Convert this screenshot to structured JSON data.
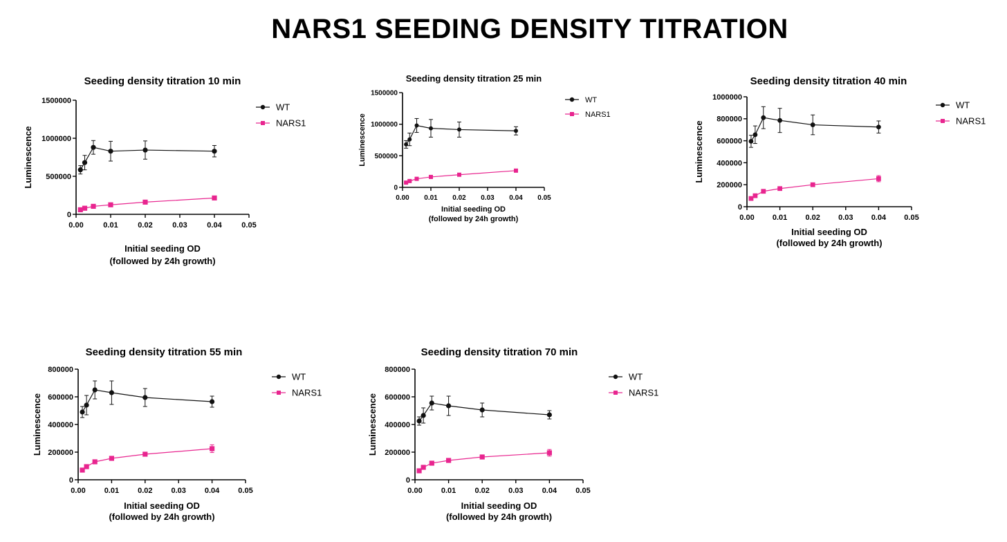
{
  "page_title": "NARS1 SEEDING DENSITY TITRATION",
  "colors": {
    "WT": "#111111",
    "NARS1": "#e8258f"
  },
  "chart_data": [
    {
      "type": "line",
      "title": "Seeding density titration 10 min",
      "xlabel": [
        "Initial seeding OD",
        "(followed by 24h growth)"
      ],
      "ylabel": "Luminescence",
      "xlim": [
        0,
        0.05
      ],
      "ylim": [
        0,
        1500000
      ],
      "xticks": [
        "0.00",
        "0.01",
        "0.02",
        "0.03",
        "0.04",
        "0.05"
      ],
      "yticks": [
        "0",
        "500000",
        "1000000",
        "1500000"
      ],
      "legend": [
        "WT",
        "NARS1"
      ],
      "series": [
        {
          "name": "WT",
          "x": [
            0.00125,
            0.0025,
            0.005,
            0.01,
            0.02,
            0.04
          ],
          "values": [
            585000,
            680000,
            880000,
            830000,
            845000,
            830000
          ],
          "errors": [
            55000,
            95000,
            90000,
            130000,
            120000,
            75000
          ]
        },
        {
          "name": "NARS1",
          "x": [
            0.00125,
            0.0025,
            0.005,
            0.01,
            0.02,
            0.04
          ],
          "values": [
            60000,
            80000,
            105000,
            125000,
            160000,
            215000
          ],
          "errors": [
            10000,
            10000,
            12000,
            12000,
            15000,
            22000
          ]
        }
      ]
    },
    {
      "type": "line",
      "title": "Seeding density titration 25 min",
      "xlabel": [
        "Initial seeding OD",
        "(followed by 24h growth)"
      ],
      "ylabel": "Luminescence",
      "xlim": [
        0,
        0.05
      ],
      "ylim": [
        0,
        1500000
      ],
      "xticks": [
        "0.00",
        "0.01",
        "0.02",
        "0.03",
        "0.04",
        "0.05"
      ],
      "yticks": [
        "0",
        "500000",
        "1000000",
        "1500000"
      ],
      "legend": [
        "WT",
        "NARS1"
      ],
      "series": [
        {
          "name": "WT",
          "x": [
            0.00125,
            0.0025,
            0.005,
            0.01,
            0.02,
            0.04
          ],
          "values": [
            680000,
            760000,
            980000,
            935000,
            915000,
            895000
          ],
          "errors": [
            60000,
            100000,
            110000,
            140000,
            120000,
            65000
          ]
        },
        {
          "name": "NARS1",
          "x": [
            0.00125,
            0.0025,
            0.005,
            0.01,
            0.02,
            0.04
          ],
          "values": [
            75000,
            100000,
            135000,
            165000,
            200000,
            265000
          ],
          "errors": [
            10000,
            12000,
            14000,
            15000,
            16000,
            25000
          ]
        }
      ]
    },
    {
      "type": "line",
      "title": "Seeding density titration 40 min",
      "xlabel": [
        "Initial seeding OD",
        "(followed by 24h growth)"
      ],
      "ylabel": "Luminescence",
      "xlim": [
        0,
        0.05
      ],
      "ylim": [
        0,
        1000000
      ],
      "xticks": [
        "0.00",
        "0.01",
        "0.02",
        "0.03",
        "0.04",
        "0.05"
      ],
      "yticks": [
        "0",
        "200000",
        "400000",
        "600000",
        "800000",
        "1000000"
      ],
      "legend": [
        "WT",
        "NARS1"
      ],
      "series": [
        {
          "name": "WT",
          "x": [
            0.00125,
            0.0025,
            0.005,
            0.01,
            0.02,
            0.04
          ],
          "values": [
            595000,
            655000,
            810000,
            785000,
            745000,
            725000
          ],
          "errors": [
            55000,
            80000,
            100000,
            110000,
            90000,
            55000
          ]
        },
        {
          "name": "NARS1",
          "x": [
            0.00125,
            0.0025,
            0.005,
            0.01,
            0.02,
            0.04
          ],
          "values": [
            75000,
            100000,
            140000,
            165000,
            200000,
            255000
          ],
          "errors": [
            10000,
            10000,
            12000,
            12000,
            14000,
            28000
          ]
        }
      ]
    },
    {
      "type": "line",
      "title": "Seeding density titration 55 min",
      "xlabel": [
        "Initial seeding OD",
        "(followed by 24h growth)"
      ],
      "ylabel": "Luminescence",
      "xlim": [
        0,
        0.05
      ],
      "ylim": [
        0,
        800000
      ],
      "xticks": [
        "0.00",
        "0.01",
        "0.02",
        "0.03",
        "0.04",
        "0.05"
      ],
      "yticks": [
        "0",
        "200000",
        "400000",
        "600000",
        "800000"
      ],
      "legend": [
        "WT",
        "NARS1"
      ],
      "series": [
        {
          "name": "WT",
          "x": [
            0.00125,
            0.0025,
            0.005,
            0.01,
            0.02,
            0.04
          ],
          "values": [
            490000,
            540000,
            650000,
            630000,
            595000,
            565000
          ],
          "errors": [
            40000,
            70000,
            65000,
            85000,
            65000,
            40000
          ]
        },
        {
          "name": "NARS1",
          "x": [
            0.00125,
            0.0025,
            0.005,
            0.01,
            0.02,
            0.04
          ],
          "values": [
            70000,
            95000,
            130000,
            155000,
            185000,
            225000
          ],
          "errors": [
            8000,
            9000,
            10000,
            11000,
            12000,
            28000
          ]
        }
      ]
    },
    {
      "type": "line",
      "title": "Seeding density titration 70 min",
      "xlabel": [
        "Initial seeding OD",
        "(followed by 24h growth)"
      ],
      "ylabel": "Luminescence",
      "xlim": [
        0,
        0.05
      ],
      "ylim": [
        0,
        800000
      ],
      "xticks": [
        "0.00",
        "0.01",
        "0.02",
        "0.03",
        "0.04",
        "0.05"
      ],
      "yticks": [
        "0",
        "200000",
        "400000",
        "600000",
        "800000"
      ],
      "legend": [
        "WT",
        "NARS1"
      ],
      "series": [
        {
          "name": "WT",
          "x": [
            0.00125,
            0.0025,
            0.005,
            0.01,
            0.02,
            0.04
          ],
          "values": [
            425000,
            465000,
            555000,
            535000,
            505000,
            470000
          ],
          "errors": [
            30000,
            55000,
            50000,
            70000,
            50000,
            30000
          ]
        },
        {
          "name": "NARS1",
          "x": [
            0.00125,
            0.0025,
            0.005,
            0.01,
            0.02,
            0.04
          ],
          "values": [
            65000,
            90000,
            120000,
            140000,
            165000,
            195000
          ],
          "errors": [
            7000,
            8000,
            9000,
            10000,
            11000,
            24000
          ]
        }
      ]
    }
  ]
}
